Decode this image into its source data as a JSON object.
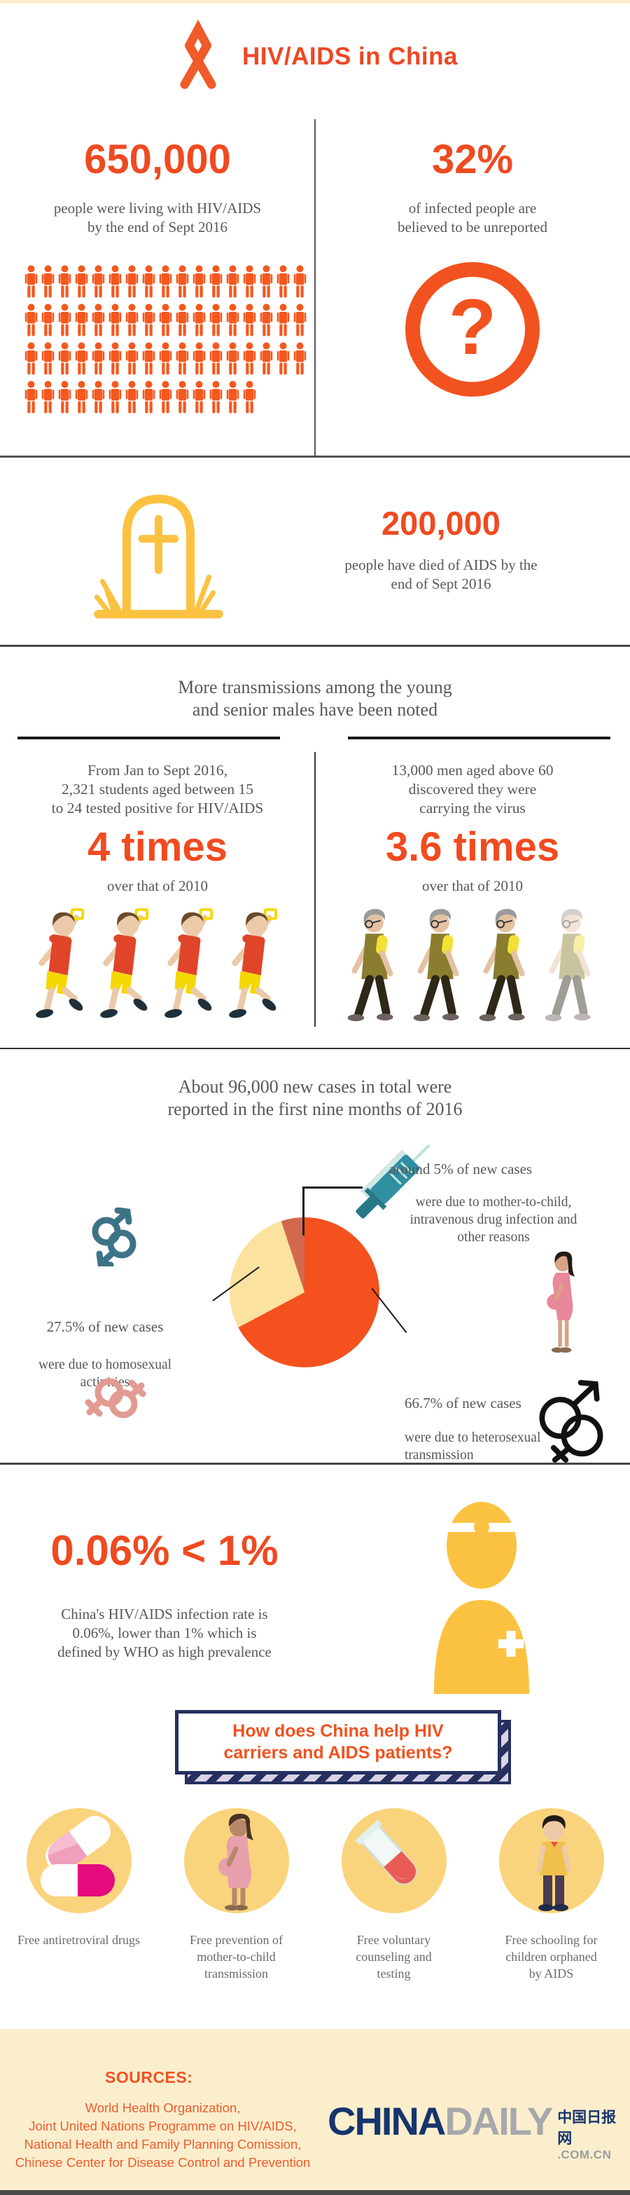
{
  "colors": {
    "accent_orange": "#f1521f",
    "deep_orange": "#ef4a21",
    "yellow": "#fbc242",
    "circle_yellow": "#fad47c",
    "cream": "#fbeecd",
    "gray_text": "#58585a",
    "navy": "#26305f",
    "teal": "#3d7386",
    "pink": "#e29b93",
    "pie_orange": "#f4511e",
    "pie_yellow": "#fbe29e",
    "pie_red": "#d2694f"
  },
  "header": {
    "title": "HIV/AIDS in China",
    "icon": "aids-ribbon"
  },
  "stats": {
    "left": {
      "value": "650,000",
      "desc_line1": "people were living with HIV/AIDS",
      "desc_line2": "by the end of Sept 2016"
    },
    "right": {
      "value": "32%",
      "desc_line1": "of infected people are",
      "desc_line2": "believed to be unreported",
      "icon": "question-mark",
      "question_glyph": "?"
    },
    "people_chart": {
      "icon": "person-pictogram",
      "rows": [
        17,
        17,
        17,
        14
      ],
      "total_icons": 65
    }
  },
  "deaths": {
    "icon": "tombstone",
    "value": "200,000",
    "desc_line1": "people have died of AIDS by the",
    "desc_line2": "end of Sept 2016"
  },
  "transmissions": {
    "heading_line1": "More transmissions among the young",
    "heading_line2": "and senior males have been noted",
    "young": {
      "intro": "From Jan to Sept 2016,",
      "detail_line1": "2,321 students aged between 15",
      "detail_line2": "to 24 tested positive for HIV/AIDS",
      "multiplier": "4 times",
      "baseline": "over that of 2010",
      "figure_count": 4,
      "icon": "running-student"
    },
    "senior": {
      "detail_line1": "13,000 men aged above 60",
      "detail_line2": "discovered they were",
      "detail_line3": "carrying the virus",
      "multiplier": "3.6 times",
      "baseline": "over that of 2010",
      "figure_count": 4,
      "icon": "walking-senior"
    }
  },
  "new_cases": {
    "heading_line1": "About 96,000 new cases in total were",
    "heading_line2": "reported in the first nine months of 2016",
    "other": {
      "title": "around 5% of new cases",
      "desc_line1": "were due to mother-to-child,",
      "desc_line2": "intravenous drug infection and",
      "desc_line3": "other reasons",
      "icon": "syringe"
    },
    "homosexual": {
      "title": "27.5% of new cases",
      "desc_line1": "were due to homosexual",
      "desc_line2": "activities",
      "icon": "double-mars"
    },
    "heterosexual": {
      "title": "66.7% of new cases",
      "desc_line1": "were due to heterosexual",
      "desc_line2": "transmission",
      "icon": "mars-venus"
    }
  },
  "chart_data": {
    "type": "pie",
    "title": "About 96,000 new cases in total were reported in the first nine months of 2016",
    "total_reference": "96,000 new cases",
    "start_angle_deg": 0,
    "direction": "clockwise",
    "slices": [
      {
        "label": "heterosexual transmission",
        "value": 66.7,
        "color": "#f4511e"
      },
      {
        "label": "homosexual activities",
        "value": 27.5,
        "color": "#fbe29e"
      },
      {
        "label": "mother-to-child, intravenous drug infection and other reasons",
        "value": 5,
        "color": "#d2694f"
      }
    ]
  },
  "infection_rate": {
    "comparison": "0.06% < 1%",
    "desc_line1": "China's HIV/AIDS infection rate is",
    "desc_line2": "0.06%, lower than 1% which is",
    "desc_line3": "defined by WHO as high prevalence",
    "icon": "doctor"
  },
  "help": {
    "question_line1": "How does China help HIV",
    "question_line2": "carriers and AIDS patients?",
    "items": [
      {
        "icon": "pills",
        "label_lines": [
          "Free antiretroviral drugs",
          "",
          ""
        ]
      },
      {
        "icon": "pregnant-woman",
        "label_lines": [
          "Free prevention of",
          "mother-to-child",
          "transmission"
        ]
      },
      {
        "icon": "test-tube",
        "label_lines": [
          "Free voluntary",
          "counseling and",
          "testing"
        ]
      },
      {
        "icon": "orphan-child",
        "label_lines": [
          "Free schooling for",
          "children orphaned",
          "by AIDS"
        ]
      }
    ]
  },
  "footer": {
    "sources_label": "SOURCES:",
    "sources": [
      "World Health Organization,",
      "Joint United Nations Programme on HIV/AIDS,",
      "National Health and Family Planning Comission,",
      "Chinese Center for Disease Control and Prevention"
    ],
    "logo": {
      "part1": "CHINA",
      "part2": "DAILY",
      "cn": "中国日报网",
      "domain": ".COM.CN"
    }
  }
}
